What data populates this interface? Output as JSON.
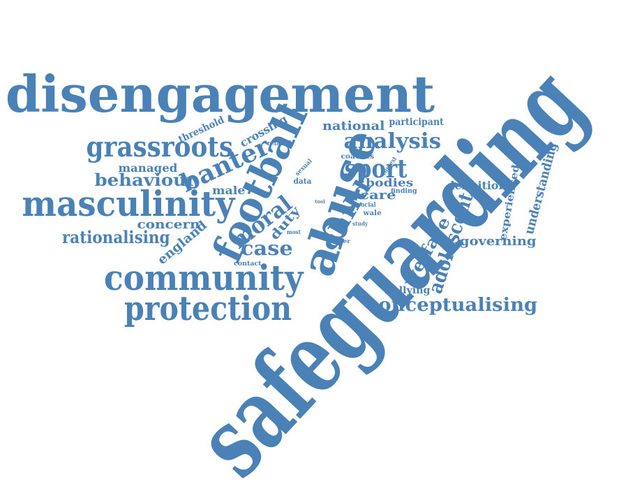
{
  "colors": {
    "word": "#4a82b7",
    "background": "#ffffff"
  },
  "words": [
    "safeguarding",
    "disengagement",
    "abuse",
    "football",
    "community",
    "protection",
    "masculinity",
    "grassroots",
    "banter",
    "analysis",
    "sport",
    "child",
    "conceptualising",
    "adolescent",
    "welfare",
    "moral",
    "behaviour",
    "rationalising",
    "case",
    "national",
    "governing",
    "definition",
    "understanding",
    "experienced",
    "england",
    "bodies",
    "care",
    "duty",
    "male",
    "concern",
    "managed",
    "participant",
    "crossing",
    "threshold",
    "bullying",
    "coaches",
    "data",
    "related",
    "sexual",
    "context",
    "finding",
    "social",
    "line",
    "tool",
    "wale",
    "study",
    "player",
    "most",
    "contact"
  ]
}
